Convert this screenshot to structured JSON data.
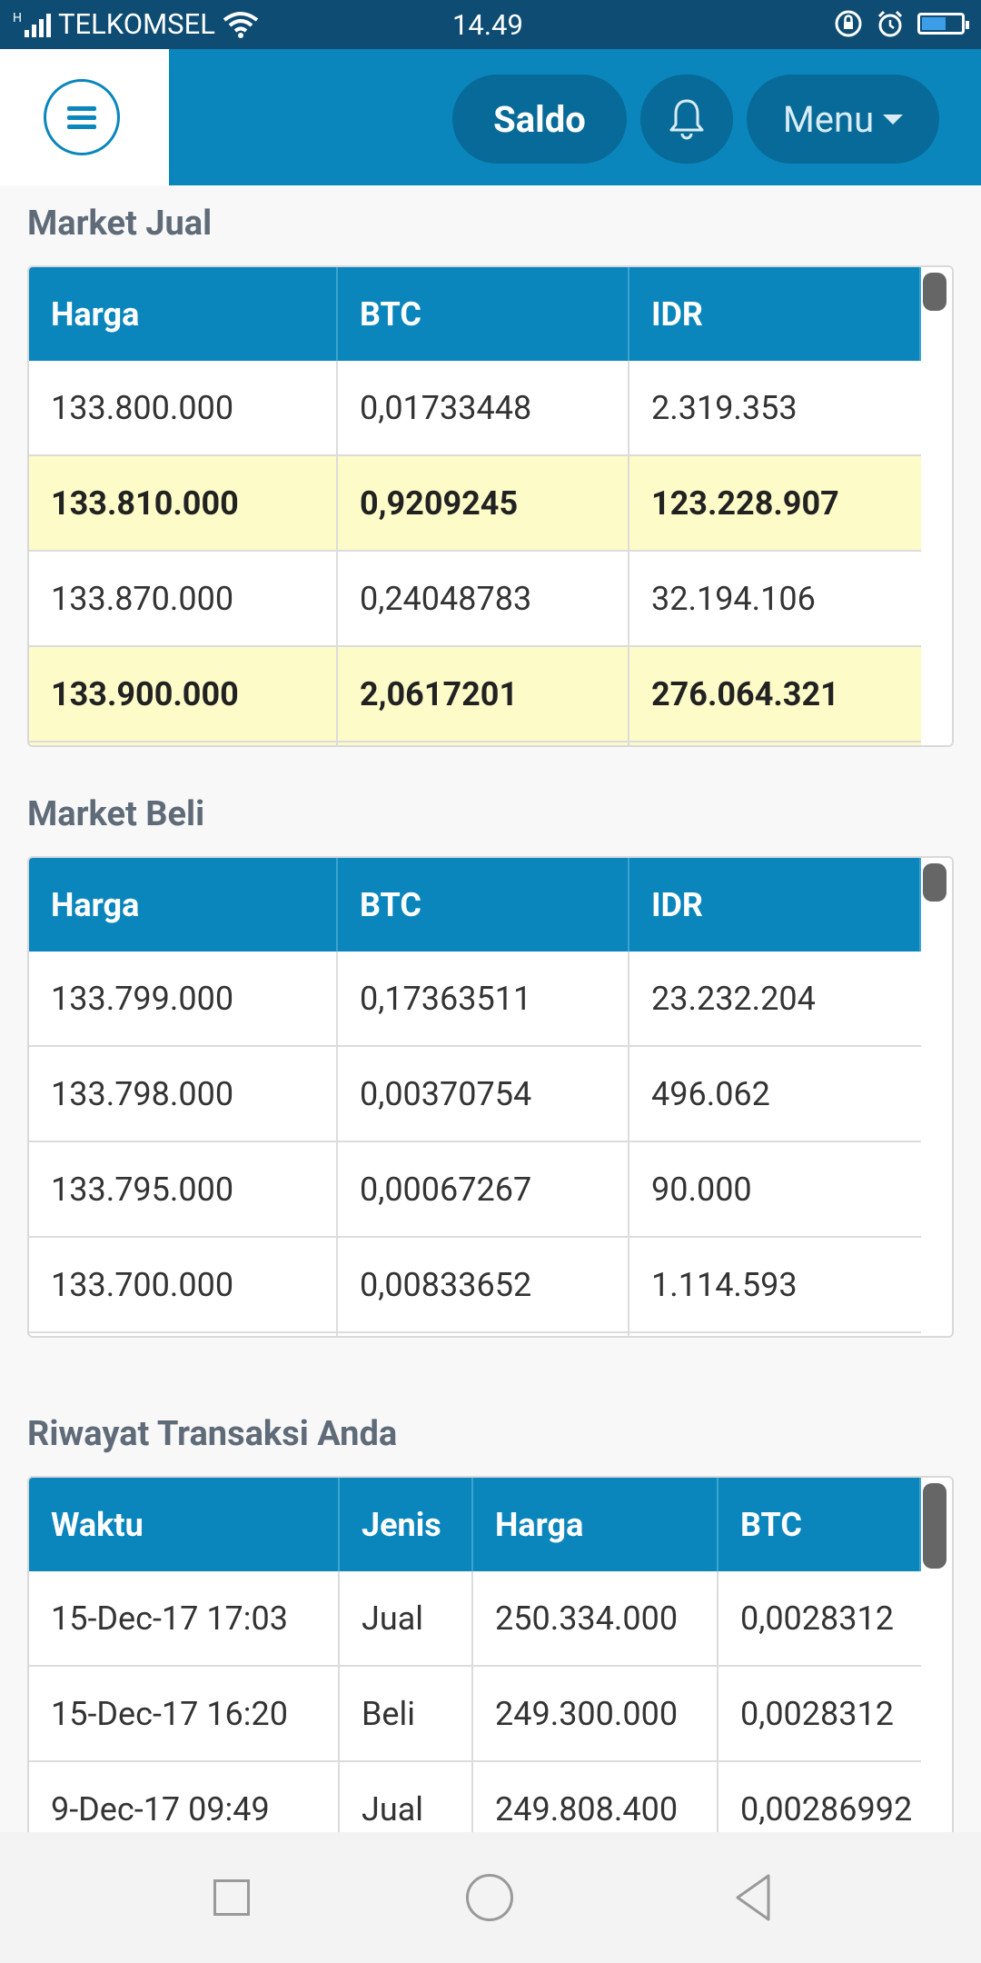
{
  "status_bar": {
    "carrier": "TELKOMSEL",
    "network": "H",
    "time": "14.49"
  },
  "header": {
    "saldo_label": "Saldo",
    "menu_label": "Menu"
  },
  "colors": {
    "primary": "#0a86bc",
    "status_bar": "#0e4c73",
    "highlight_row": "#fdfcc8"
  },
  "market_jual": {
    "title": "Market Jual",
    "columns": [
      "Harga",
      "BTC",
      "IDR"
    ],
    "rows": [
      {
        "harga": "133.800.000",
        "btc": "0,01733448",
        "idr": "2.319.353",
        "highlight": false
      },
      {
        "harga": "133.810.000",
        "btc": "0,9209245",
        "idr": "123.228.907",
        "highlight": true
      },
      {
        "harga": "133.870.000",
        "btc": "0,24048783",
        "idr": "32.194.106",
        "highlight": false
      },
      {
        "harga": "133.900.000",
        "btc": "2,0617201",
        "idr": "276.064.321",
        "highlight": true
      }
    ]
  },
  "market_beli": {
    "title": "Market Beli",
    "columns": [
      "Harga",
      "BTC",
      "IDR"
    ],
    "rows": [
      {
        "harga": "133.799.000",
        "btc": "0,17363511",
        "idr": "23.232.204"
      },
      {
        "harga": "133.798.000",
        "btc": "0,00370754",
        "idr": "496.062"
      },
      {
        "harga": "133.795.000",
        "btc": "0,00067267",
        "idr": "90.000"
      },
      {
        "harga": "133.700.000",
        "btc": "0,00833652",
        "idr": "1.114.593"
      }
    ]
  },
  "riwayat": {
    "title": "Riwayat Transaksi Anda",
    "columns": [
      "Waktu",
      "Jenis",
      "Harga",
      "BTC"
    ],
    "rows": [
      {
        "waktu": "15-Dec-17 17:03",
        "jenis": "Jual",
        "harga": "250.334.000",
        "btc": "0,0028312"
      },
      {
        "waktu": "15-Dec-17 16:20",
        "jenis": "Beli",
        "harga": "249.300.000",
        "btc": "0,0028312"
      },
      {
        "waktu": "9-Dec-17 09:49",
        "jenis": "Jual",
        "harga": "249.808.400",
        "btc": "0,00286992"
      }
    ]
  }
}
